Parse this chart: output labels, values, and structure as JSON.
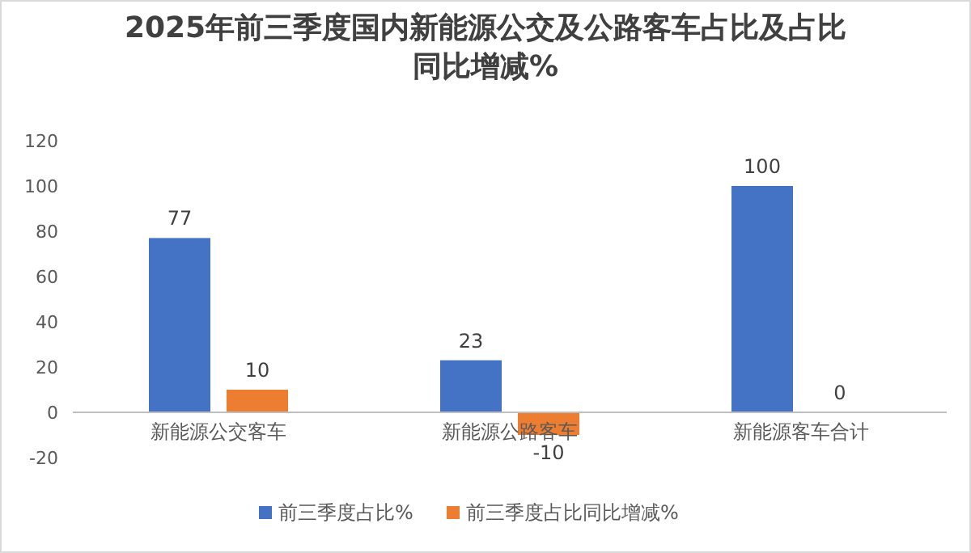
{
  "chart_data": {
    "type": "bar",
    "title": "2025年前三季度国内新能源公交及公路客车占比及占比同比增减%",
    "categories": [
      "新能源公交客车",
      "新能源公路客车",
      "新能源客车合计"
    ],
    "series": [
      {
        "name": "前三季度占比%",
        "color": "#4472c4",
        "values": [
          77,
          23,
          100
        ]
      },
      {
        "name": "前三季度占比同比增减%",
        "color": "#ed7d31",
        "values": [
          10,
          -10,
          0
        ]
      }
    ],
    "ylim": [
      -20,
      120
    ],
    "yticks": [
      -20,
      0,
      20,
      40,
      60,
      80,
      100,
      120
    ],
    "data_labels": true,
    "legend": "bottom"
  }
}
